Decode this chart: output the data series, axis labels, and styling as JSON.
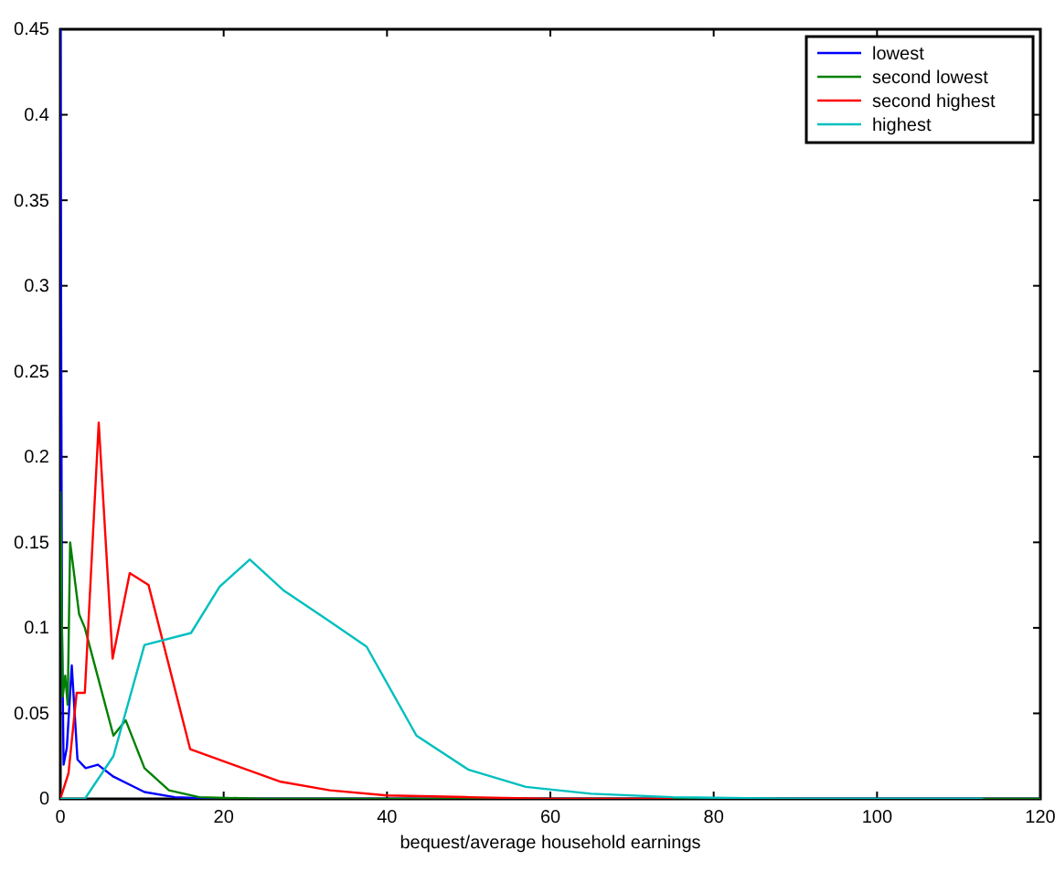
{
  "chart_data": {
    "type": "line",
    "xlabel": "bequest/average household earnings",
    "xlim": [
      0,
      120
    ],
    "xticks": [
      0,
      20,
      40,
      60,
      80,
      100,
      120
    ],
    "ylim": [
      0,
      0.45
    ],
    "yticks": [
      0,
      0.05,
      0.1,
      0.15,
      0.2,
      0.25,
      0.3,
      0.35,
      0.4,
      0.45
    ],
    "grid": false,
    "legend": "top right",
    "marker": "none",
    "line_style": "solid",
    "series": [
      {
        "name": "lowest",
        "color": "#0000ff",
        "x": [
          0,
          0.2,
          0.4,
          0.8,
          1.4,
          2.1,
          3.1,
          4.6,
          6.5,
          10.3,
          14,
          20,
          120
        ],
        "values": [
          0.45,
          0.1,
          0.02,
          0.03,
          0.078,
          0.023,
          0.018,
          0.02,
          0.013,
          0.004,
          0.001,
          0,
          0
        ]
      },
      {
        "name": "second lowest",
        "color": "#008000",
        "x": [
          0,
          0.3,
          0.6,
          0.9,
          1.2,
          2.3,
          3,
          6.5,
          8,
          10.3,
          13.3,
          17,
          25,
          120
        ],
        "values": [
          0.18,
          0.06,
          0.072,
          0.055,
          0.15,
          0.108,
          0.1,
          0.037,
          0.046,
          0.018,
          0.005,
          0.001,
          0,
          0
        ]
      },
      {
        "name": "second highest",
        "color": "#ff0000",
        "x": [
          0,
          1,
          2,
          3,
          4.7,
          6.4,
          8.5,
          10.8,
          15.9,
          20,
          27,
          33,
          40,
          50,
          60,
          75
        ],
        "values": [
          0,
          0.015,
          0.062,
          0.062,
          0.22,
          0.082,
          0.132,
          0.125,
          0.029,
          0.022,
          0.01,
          0.005,
          0.002,
          0.001,
          0,
          0
        ]
      },
      {
        "name": "highest",
        "color": "#00bfbf",
        "x": [
          0,
          3,
          6.5,
          10.3,
          16,
          19.5,
          23.2,
          27.3,
          32.6,
          37.5,
          43.6,
          50,
          57,
          65,
          75,
          90,
          113
        ],
        "values": [
          0,
          0,
          0.025,
          0.09,
          0.097,
          0.124,
          0.14,
          0.122,
          0.105,
          0.089,
          0.037,
          0.017,
          0.007,
          0.003,
          0.001,
          0,
          0
        ]
      }
    ]
  }
}
